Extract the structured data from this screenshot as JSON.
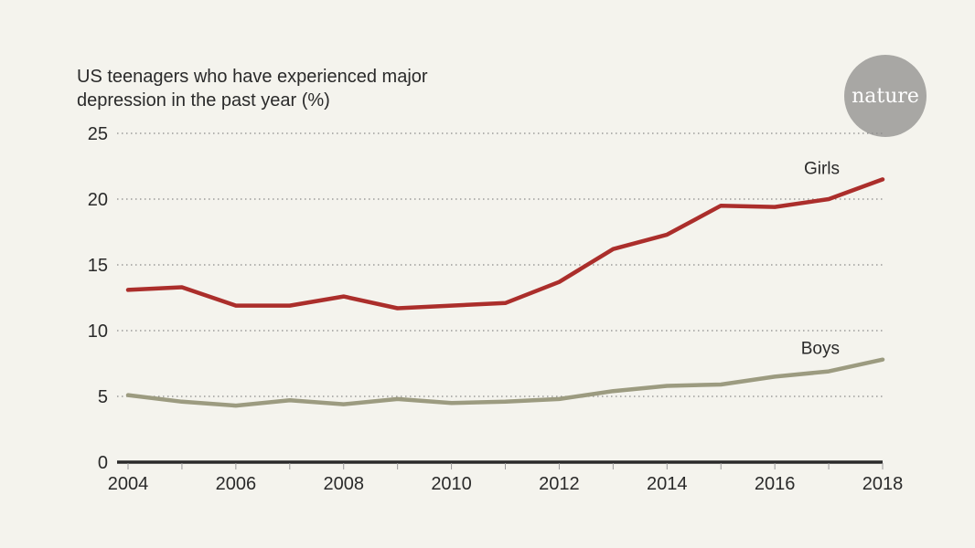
{
  "chart_data": {
    "type": "line",
    "title": "US teenagers who have experienced major depression in the past year (%)",
    "title_lines": [
      "US teenagers who have experienced major",
      "depression in the past year (%)"
    ],
    "xlabel": "",
    "ylabel": "",
    "x": [
      2004,
      2005,
      2006,
      2007,
      2008,
      2009,
      2010,
      2011,
      2012,
      2013,
      2014,
      2015,
      2016,
      2017,
      2018
    ],
    "xlim": [
      2004,
      2018
    ],
    "ylim": [
      0,
      25
    ],
    "x_ticks": [
      2004,
      2006,
      2008,
      2010,
      2012,
      2014,
      2016,
      2018
    ],
    "x_minor_ticks": [
      2004,
      2005,
      2006,
      2007,
      2008,
      2009,
      2010,
      2011,
      2012,
      2013,
      2014,
      2015,
      2016,
      2017,
      2018
    ],
    "y_ticks": [
      0,
      5,
      10,
      15,
      20,
      25
    ],
    "grid": "horizontal-dotted",
    "legend": "inline-labels",
    "series": [
      {
        "name": "Girls",
        "color": "#ab2e2b",
        "values": [
          13.1,
          13.3,
          11.9,
          11.9,
          12.6,
          11.7,
          11.9,
          12.1,
          13.7,
          16.2,
          17.3,
          19.5,
          19.4,
          20.0,
          21.5
        ]
      },
      {
        "name": "Boys",
        "color": "#9c9b80",
        "values": [
          5.1,
          4.6,
          4.3,
          4.7,
          4.4,
          4.8,
          4.5,
          4.6,
          4.8,
          5.4,
          5.8,
          5.9,
          6.5,
          6.9,
          7.8
        ]
      }
    ]
  },
  "branding": {
    "logo_text": "nature",
    "logo_color": "#a8a7a4"
  },
  "colors": {
    "background": "#f4f3ed",
    "axis": "#2a2a2a",
    "grid": "#8a8a8a"
  }
}
